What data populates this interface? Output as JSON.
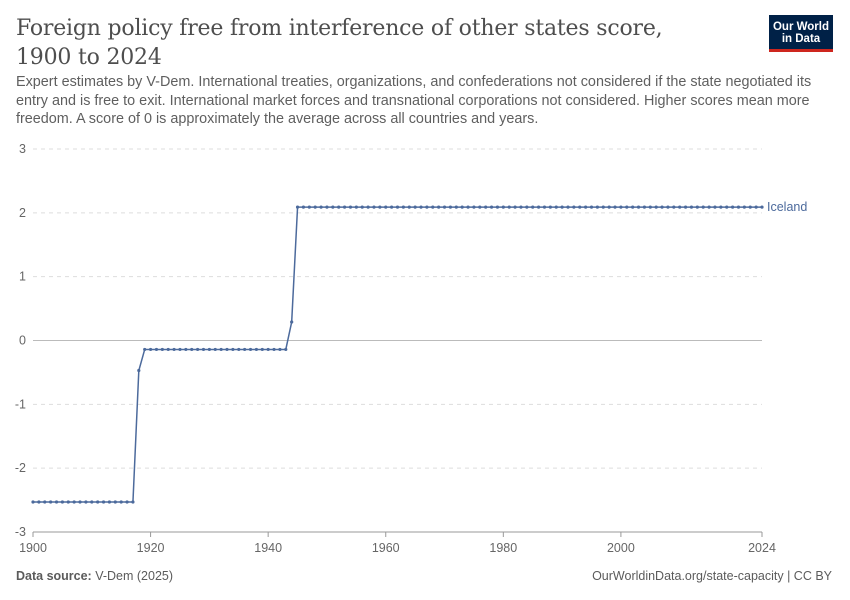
{
  "header": {
    "title": "Foreign policy free from interference of other states score, 1900 to 2024",
    "subtitle": "Expert estimates by V-Dem. International treaties, organizations, and confederations not considered if the state negotiated its entry and is free to exit. International market forces and transnational corporations not considered. Higher scores mean more freedom. A score of 0 is approximately the average across all countries and years.",
    "logo_line1": "Our World",
    "logo_line2": "in Data"
  },
  "footer": {
    "source_label": "Data source:",
    "source_value": "V-Dem (2025)",
    "url": "OurWorldinData.org/state-capacity | CC BY"
  },
  "colors": {
    "series": "#4c6a9c",
    "grid": "#dddddd",
    "zero": "#bbbbbb"
  },
  "chart_data": {
    "type": "line",
    "title": "Foreign policy free from interference of other states score, 1900 to 2024",
    "xlabel": "",
    "ylabel": "",
    "xlim": [
      1900,
      2024
    ],
    "ylim": [
      -3,
      3
    ],
    "x_ticks": [
      1900,
      1920,
      1940,
      1960,
      1980,
      2000,
      2024
    ],
    "y_ticks": [
      3,
      2,
      1,
      0,
      -1,
      -2,
      -3
    ],
    "y_tick_labels": [
      "3",
      "2",
      "1",
      "0",
      "-1",
      "-2",
      "-3"
    ],
    "series": [
      {
        "name": "Iceland",
        "segments": [
          {
            "from": 1900,
            "to": 1917,
            "value": -2.53
          },
          {
            "from": 1918,
            "to": 1918,
            "value": -0.47
          },
          {
            "from": 1919,
            "to": 1943,
            "value": -0.14
          },
          {
            "from": 1944,
            "to": 1944,
            "value": 0.29
          },
          {
            "from": 1945,
            "to": 2024,
            "value": 2.09
          }
        ]
      }
    ]
  }
}
